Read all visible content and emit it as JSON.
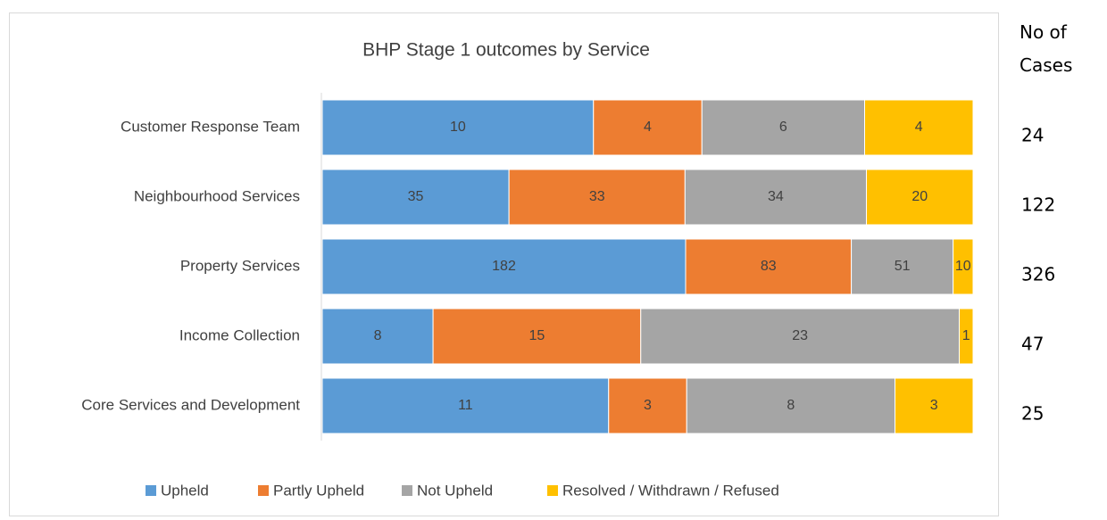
{
  "chart_data": {
    "type": "bar",
    "orientation": "horizontal",
    "stacked": "percent",
    "title": "BHP Stage 1 outcomes by Service",
    "categories": [
      "Customer Response Team",
      "Neighbourhood Services",
      "Property Services",
      "Income Collection",
      "Core Services and Development"
    ],
    "series": [
      {
        "name": "Upheld",
        "color": "#5b9bd5",
        "values": [
          10,
          35,
          182,
          8,
          11
        ]
      },
      {
        "name": "Partly Upheld",
        "color": "#ed7d31",
        "values": [
          4,
          33,
          83,
          15,
          3
        ]
      },
      {
        "name": "Not Upheld",
        "color": "#a5a5a5",
        "values": [
          6,
          34,
          51,
          23,
          8
        ]
      },
      {
        "name": "Resolved / Withdrawn / Refused",
        "color": "#ffc000",
        "values": [
          4,
          20,
          10,
          1,
          3
        ]
      }
    ],
    "legend": "bottom",
    "totals_header": "No of Cases",
    "totals": [
      24,
      122,
      326,
      47,
      25
    ]
  }
}
